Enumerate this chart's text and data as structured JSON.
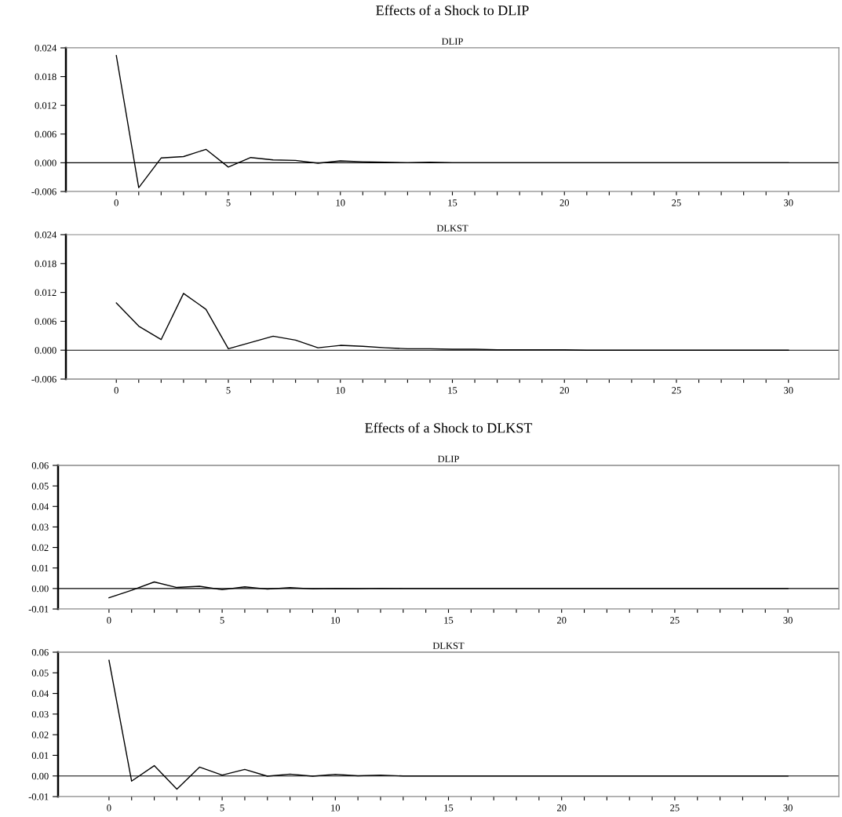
{
  "chart_data": [
    {
      "type": "line",
      "title": "Effects of a Shock to DLIP",
      "subtitle": "DLIP",
      "x": [
        0,
        1,
        2,
        3,
        4,
        5,
        6,
        7,
        8,
        9,
        10,
        11,
        12,
        13,
        14,
        15,
        16,
        17,
        18,
        19,
        20,
        21,
        22,
        23,
        24,
        25,
        26,
        27,
        28,
        29,
        30
      ],
      "series": [
        {
          "color": "#000000",
          "values": [
            0.0224,
            -0.0052,
            0.001,
            0.0013,
            0.0028,
            -0.0009,
            0.0011,
            0.0006,
            0.0005,
            -0.0001,
            0.0004,
            0.0002,
            0.0001,
            0.0,
            0.0001,
            0,
            0,
            0,
            0,
            0,
            0,
            0,
            0,
            0,
            0,
            0,
            0,
            0,
            0,
            0,
            0
          ]
        }
      ],
      "xlim": [
        -2.25,
        32.25
      ],
      "xticks": [
        0,
        {
          "value": 1,
          "label": null
        },
        {
          "value": 2,
          "label": null
        },
        {
          "value": 3,
          "label": null
        },
        {
          "value": 4,
          "label": null
        },
        5,
        {
          "value": 6,
          "label": null
        },
        {
          "value": 7,
          "label": null
        },
        {
          "value": 8,
          "label": null
        },
        {
          "value": 9,
          "label": null
        },
        10,
        {
          "value": 11,
          "label": null
        },
        {
          "value": 12,
          "label": null
        },
        {
          "value": 13,
          "label": null
        },
        {
          "value": 14,
          "label": null
        },
        15,
        {
          "value": 16,
          "label": null
        },
        {
          "value": 17,
          "label": null
        },
        {
          "value": 18,
          "label": null
        },
        {
          "value": 19,
          "label": null
        },
        20,
        {
          "value": 21,
          "label": null
        },
        {
          "value": 22,
          "label": null
        },
        {
          "value": 23,
          "label": null
        },
        {
          "value": 24,
          "label": null
        },
        25,
        {
          "value": 26,
          "label": null
        },
        {
          "value": 27,
          "label": null
        },
        {
          "value": 28,
          "label": null
        },
        {
          "value": 29,
          "label": null
        },
        30
      ],
      "ylim": [
        -0.006,
        0.024
      ],
      "yticks": [
        {
          "value": -0.006,
          "label": "-0.006"
        },
        {
          "value": 0,
          "label": "0.000"
        },
        {
          "value": 0.006,
          "label": "0.006"
        },
        {
          "value": 0.012,
          "label": "0.012"
        },
        {
          "value": 0.018,
          "label": "0.018"
        },
        {
          "value": 0.024,
          "label": "0.024"
        }
      ],
      "ref_lines": [
        {
          "axis": "y",
          "value": 0,
          "color": "#000000"
        }
      ],
      "grid": false,
      "legend": false
    },
    {
      "type": "line",
      "subtitle": "DLKST",
      "x": [
        0,
        1,
        2,
        3,
        4,
        5,
        6,
        7,
        8,
        9,
        10,
        11,
        12,
        13,
        14,
        15,
        16,
        17,
        18,
        19,
        20,
        21,
        22,
        23,
        24,
        25,
        26,
        27,
        28,
        29,
        30
      ],
      "series": [
        {
          "color": "#000000",
          "values": [
            0.0098,
            0.005,
            0.0022,
            0.0118,
            0.0085,
            0.0003,
            0.0016,
            0.0029,
            0.0021,
            0.0005,
            0.001,
            0.0008,
            0.0005,
            0.0003,
            0.0003,
            0.0002,
            0.0002,
            0.0001,
            0.0001,
            0.0001,
            0.0001,
            0,
            0,
            0,
            0,
            0,
            0,
            0,
            0,
            0,
            0
          ]
        }
      ],
      "xlim": [
        -2.25,
        32.25
      ],
      "xticks": [
        0,
        {
          "value": 1,
          "label": null
        },
        {
          "value": 2,
          "label": null
        },
        {
          "value": 3,
          "label": null
        },
        {
          "value": 4,
          "label": null
        },
        5,
        {
          "value": 6,
          "label": null
        },
        {
          "value": 7,
          "label": null
        },
        {
          "value": 8,
          "label": null
        },
        {
          "value": 9,
          "label": null
        },
        10,
        {
          "value": 11,
          "label": null
        },
        {
          "value": 12,
          "label": null
        },
        {
          "value": 13,
          "label": null
        },
        {
          "value": 14,
          "label": null
        },
        15,
        {
          "value": 16,
          "label": null
        },
        {
          "value": 17,
          "label": null
        },
        {
          "value": 18,
          "label": null
        },
        {
          "value": 19,
          "label": null
        },
        20,
        {
          "value": 21,
          "label": null
        },
        {
          "value": 22,
          "label": null
        },
        {
          "value": 23,
          "label": null
        },
        {
          "value": 24,
          "label": null
        },
        25,
        {
          "value": 26,
          "label": null
        },
        {
          "value": 27,
          "label": null
        },
        {
          "value": 28,
          "label": null
        },
        {
          "value": 29,
          "label": null
        },
        30
      ],
      "ylim": [
        -0.006,
        0.024
      ],
      "yticks": [
        {
          "value": -0.006,
          "label": "-0.006"
        },
        {
          "value": 0,
          "label": "0.000"
        },
        {
          "value": 0.006,
          "label": "0.006"
        },
        {
          "value": 0.012,
          "label": "0.012"
        },
        {
          "value": 0.018,
          "label": "0.018"
        },
        {
          "value": 0.024,
          "label": "0.024"
        }
      ],
      "ref_lines": [
        {
          "axis": "y",
          "value": 0,
          "color": "#000000"
        }
      ],
      "grid": false,
      "legend": false
    },
    {
      "type": "line",
      "title": "Effects of a Shock to DLKST",
      "subtitle": "DLIP",
      "x": [
        0,
        1,
        2,
        3,
        4,
        5,
        6,
        7,
        8,
        9,
        10,
        11,
        12,
        13,
        14,
        15,
        16,
        17,
        18,
        19,
        20,
        21,
        22,
        23,
        24,
        25,
        26,
        27,
        28,
        29,
        30
      ],
      "series": [
        {
          "color": "#000000",
          "values": [
            -0.0045,
            -0.0009,
            0.0032,
            0.0005,
            0.0011,
            -0.0006,
            0.0008,
            -0.0003,
            0.0004,
            -0.0002,
            0.0,
            -0.0001,
            0.0001,
            0,
            0,
            0,
            0,
            0,
            0,
            0,
            0,
            0,
            0,
            0,
            0,
            0,
            0,
            0,
            0,
            0,
            0
          ]
        }
      ],
      "xlim": [
        -2.25,
        32.25
      ],
      "xticks": [
        0,
        {
          "value": 1,
          "label": null
        },
        {
          "value": 2,
          "label": null
        },
        {
          "value": 3,
          "label": null
        },
        {
          "value": 4,
          "label": null
        },
        5,
        {
          "value": 6,
          "label": null
        },
        {
          "value": 7,
          "label": null
        },
        {
          "value": 8,
          "label": null
        },
        {
          "value": 9,
          "label": null
        },
        10,
        {
          "value": 11,
          "label": null
        },
        {
          "value": 12,
          "label": null
        },
        {
          "value": 13,
          "label": null
        },
        {
          "value": 14,
          "label": null
        },
        15,
        {
          "value": 16,
          "label": null
        },
        {
          "value": 17,
          "label": null
        },
        {
          "value": 18,
          "label": null
        },
        {
          "value": 19,
          "label": null
        },
        20,
        {
          "value": 21,
          "label": null
        },
        {
          "value": 22,
          "label": null
        },
        {
          "value": 23,
          "label": null
        },
        {
          "value": 24,
          "label": null
        },
        25,
        {
          "value": 26,
          "label": null
        },
        {
          "value": 27,
          "label": null
        },
        {
          "value": 28,
          "label": null
        },
        {
          "value": 29,
          "label": null
        },
        30
      ],
      "ylim": [
        -0.01,
        0.06
      ],
      "yticks": [
        {
          "value": -0.01,
          "label": "-0.01"
        },
        {
          "value": 0,
          "label": "0.00"
        },
        {
          "value": 0.01,
          "label": "0.01"
        },
        {
          "value": 0.02,
          "label": "0.02"
        },
        {
          "value": 0.03,
          "label": "0.03"
        },
        {
          "value": 0.04,
          "label": "0.04"
        },
        {
          "value": 0.05,
          "label": "0.05"
        },
        {
          "value": 0.06,
          "label": "0.06"
        }
      ],
      "ref_lines": [
        {
          "axis": "y",
          "value": 0,
          "color": "#000000"
        }
      ],
      "grid": false,
      "legend": false
    },
    {
      "type": "line",
      "subtitle": "DLKST",
      "x": [
        0,
        1,
        2,
        3,
        4,
        5,
        6,
        7,
        8,
        9,
        10,
        11,
        12,
        13,
        14,
        15,
        16,
        17,
        18,
        19,
        20,
        21,
        22,
        23,
        24,
        25,
        26,
        27,
        28,
        29,
        30
      ],
      "series": [
        {
          "color": "#000000",
          "values": [
            0.0561,
            -0.0025,
            0.005,
            -0.0064,
            0.0043,
            0.0004,
            0.0032,
            -0.0001,
            0.0009,
            -0.0001,
            0.0008,
            0.0001,
            0.0004,
            0,
            0,
            0,
            0,
            0,
            0,
            0,
            0,
            0,
            0,
            0,
            0,
            0,
            0,
            0,
            0,
            0,
            0
          ]
        }
      ],
      "xlim": [
        -2.25,
        32.25
      ],
      "xticks": [
        0,
        {
          "value": 1,
          "label": null
        },
        {
          "value": 2,
          "label": null
        },
        {
          "value": 3,
          "label": null
        },
        {
          "value": 4,
          "label": null
        },
        5,
        {
          "value": 6,
          "label": null
        },
        {
          "value": 7,
          "label": null
        },
        {
          "value": 8,
          "label": null
        },
        {
          "value": 9,
          "label": null
        },
        10,
        {
          "value": 11,
          "label": null
        },
        {
          "value": 12,
          "label": null
        },
        {
          "value": 13,
          "label": null
        },
        {
          "value": 14,
          "label": null
        },
        15,
        {
          "value": 16,
          "label": null
        },
        {
          "value": 17,
          "label": null
        },
        {
          "value": 18,
          "label": null
        },
        {
          "value": 19,
          "label": null
        },
        20,
        {
          "value": 21,
          "label": null
        },
        {
          "value": 22,
          "label": null
        },
        {
          "value": 23,
          "label": null
        },
        {
          "value": 24,
          "label": null
        },
        25,
        {
          "value": 26,
          "label": null
        },
        {
          "value": 27,
          "label": null
        },
        {
          "value": 28,
          "label": null
        },
        {
          "value": 29,
          "label": null
        },
        30
      ],
      "ylim": [
        -0.01,
        0.06
      ],
      "yticks": [
        {
          "value": -0.01,
          "label": "-0.01"
        },
        {
          "value": 0,
          "label": "0.00"
        },
        {
          "value": 0.01,
          "label": "0.01"
        },
        {
          "value": 0.02,
          "label": "0.02"
        },
        {
          "value": 0.03,
          "label": "0.03"
        },
        {
          "value": 0.04,
          "label": "0.04"
        },
        {
          "value": 0.05,
          "label": "0.05"
        },
        {
          "value": 0.06,
          "label": "0.06"
        }
      ],
      "ref_lines": [
        {
          "axis": "y",
          "value": 0,
          "color": "#000000"
        }
      ],
      "grid": false,
      "legend": false
    }
  ]
}
